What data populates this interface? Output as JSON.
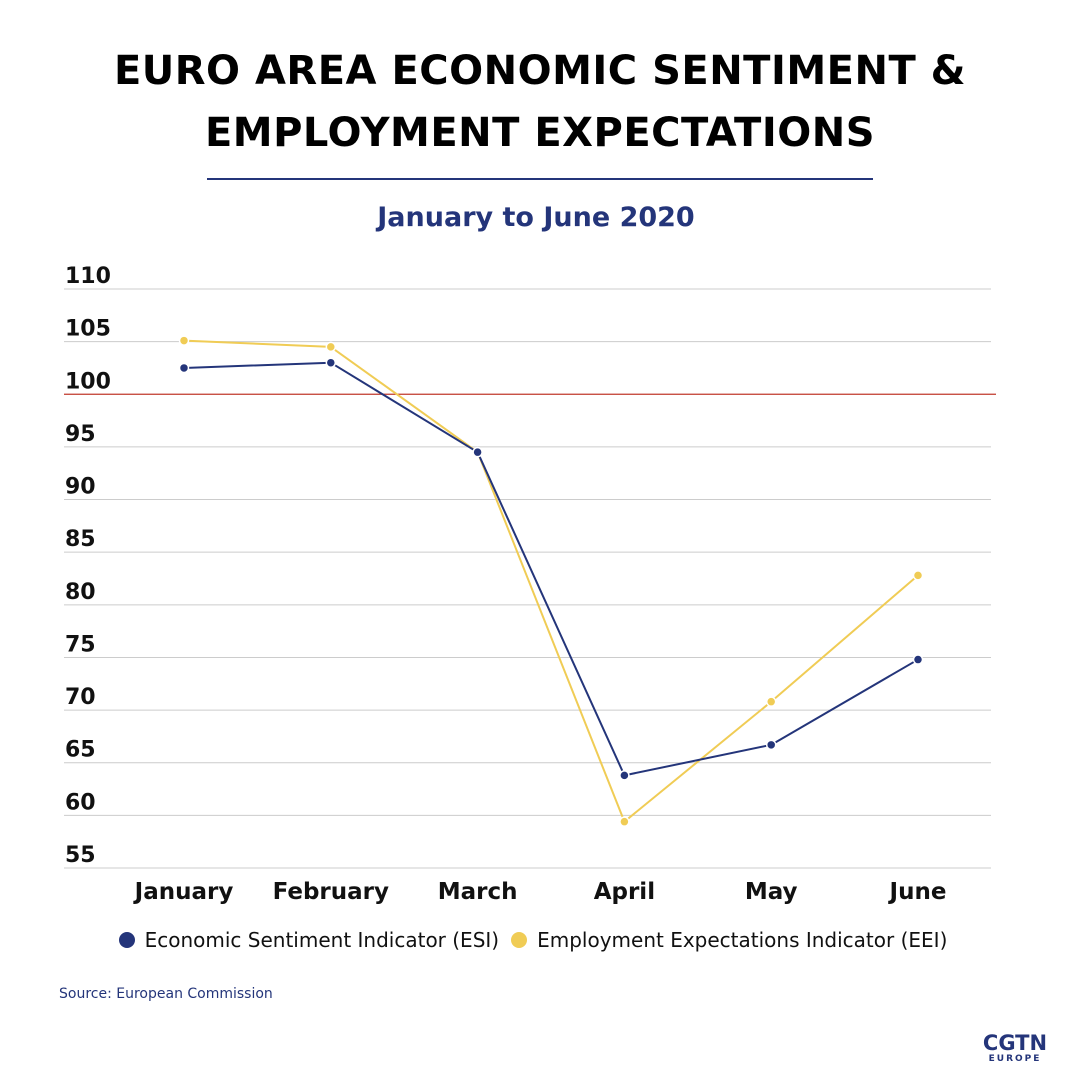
{
  "header": {
    "title": "EURO AREA ECONOMIC SENTIMENT & EMPLOYMENT EXPECTATIONS",
    "subtitle": "January to June 2020"
  },
  "colors": {
    "esi": "#24357a",
    "eei": "#f0cc55",
    "reference_line": "#c0392b",
    "grid": "#cccccc"
  },
  "chart_data": {
    "type": "line",
    "title": "EURO AREA ECONOMIC SENTIMENT & EMPLOYMENT EXPECTATIONS",
    "subtitle": "January to June 2020",
    "categories": [
      "January",
      "February",
      "March",
      "April",
      "May",
      "June"
    ],
    "series": [
      {
        "name": "Economic Sentiment Indicator (ESI)",
        "values": [
          102.5,
          103.0,
          94.5,
          63.8,
          66.7,
          74.8
        ],
        "color": "#24357a"
      },
      {
        "name": "Employment Expectations Indicator (EEI)",
        "values": [
          105.1,
          104.5,
          94.5,
          59.4,
          70.8,
          82.8
        ],
        "color": "#f0cc55"
      }
    ],
    "ylim": [
      55,
      110
    ],
    "yticks": [
      55,
      60,
      65,
      70,
      75,
      80,
      85,
      90,
      95,
      100,
      105,
      110
    ],
    "reference_line": 100,
    "xlabel": "",
    "ylabel": "",
    "grid": true,
    "legend": "bottom"
  },
  "legend": {
    "esi_label": "Economic Sentiment Indicator (ESI)",
    "eei_label": "Employment Expectations Indicator (EEI)"
  },
  "source": "Source: European Commission",
  "logo": {
    "main": "CGTN",
    "sub": "EUROPE"
  }
}
